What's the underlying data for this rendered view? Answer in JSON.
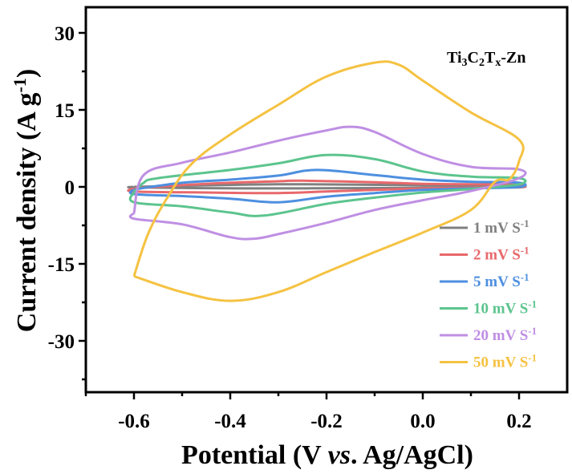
{
  "chart_data": {
    "type": "line",
    "title": "",
    "annotation": {
      "base": "Ti",
      "parts": [
        [
          "Ti",
          ""
        ],
        [
          "3",
          "sub"
        ],
        [
          "C",
          ""
        ],
        [
          "2",
          "sub"
        ],
        [
          "T",
          ""
        ],
        [
          "x",
          "sub"
        ],
        [
          "-Zn",
          ""
        ]
      ],
      "text": "Ti3C2Tx-Zn"
    },
    "xlabel": {
      "pre": "Potential (V ",
      "italic": "vs",
      "post": ". Ag/AgCl)"
    },
    "ylabel": {
      "main": "Current density (A g",
      "sup": "-1",
      "close": ")"
    },
    "xlim": [
      -0.7,
      0.3
    ],
    "ylim": [
      -40,
      35
    ],
    "xticks": [
      -0.6,
      -0.4,
      -0.2,
      0.0,
      0.2
    ],
    "xtick_labels": [
      "-0.6",
      "-0.4",
      "-0.2",
      "0.0",
      "0.2"
    ],
    "yticks": [
      30,
      15,
      0,
      -15,
      -30
    ],
    "ytick_labels": [
      "30",
      "15",
      "0",
      "-15",
      "-30"
    ],
    "grid": false,
    "legend_position": "bottom-right",
    "series": [
      {
        "name": "1 mV S-1",
        "label": "1 mV S",
        "sup": "-1",
        "color": "#808080",
        "x": [
          -0.6,
          -0.45,
          -0.3,
          -0.15,
          0.0,
          0.1,
          0.2,
          0.2,
          0.1,
          0.0,
          -0.15,
          -0.3,
          -0.45,
          -0.6,
          -0.6
        ],
        "y": [
          0.0,
          0.3,
          0.5,
          0.45,
          0.3,
          0.25,
          0.2,
          -0.1,
          -0.15,
          -0.2,
          -0.25,
          -0.3,
          -0.25,
          -0.1,
          0.0
        ]
      },
      {
        "name": "2 mV S-1",
        "label": "2 mV S",
        "sup": "-1",
        "color": "#e8686b",
        "x": [
          -0.6,
          -0.45,
          -0.3,
          -0.25,
          -0.1,
          0.0,
          0.1,
          0.2,
          0.2,
          0.1,
          0.0,
          -0.1,
          -0.2,
          -0.3,
          -0.45,
          -0.6,
          -0.6
        ],
        "y": [
          -0.3,
          0.6,
          1.1,
          1.2,
          0.9,
          0.6,
          0.5,
          0.4,
          0.0,
          -0.15,
          -0.3,
          -0.6,
          -0.9,
          -1.2,
          -1.1,
          -0.9,
          -0.3
        ]
      },
      {
        "name": "5 mV S-1",
        "label": "5 mV S",
        "sup": "-1",
        "color": "#4d8fe0",
        "x": [
          -0.6,
          -0.5,
          -0.4,
          -0.3,
          -0.22,
          -0.1,
          0.0,
          0.1,
          0.2,
          0.2,
          0.1,
          0.0,
          -0.1,
          -0.2,
          -0.3,
          -0.4,
          -0.5,
          -0.6,
          -0.6
        ],
        "y": [
          -0.5,
          0.8,
          1.4,
          2.2,
          3.3,
          2.3,
          1.4,
          1.0,
          0.8,
          0.0,
          -0.3,
          -0.6,
          -1.2,
          -1.9,
          -3.0,
          -2.3,
          -1.8,
          -1.4,
          -0.5
        ]
      },
      {
        "name": "10 mV S-1",
        "label": "10 mV S",
        "sup": "-1",
        "color": "#5cc48e",
        "x": [
          -0.6,
          -0.58,
          -0.55,
          -0.4,
          -0.3,
          -0.2,
          -0.1,
          0.0,
          0.1,
          0.2,
          0.2,
          0.1,
          0.0,
          -0.1,
          -0.2,
          -0.33,
          -0.4,
          -0.5,
          -0.6,
          -0.6
        ],
        "y": [
          -1.0,
          0.8,
          1.7,
          3.3,
          4.6,
          6.2,
          5.4,
          3.0,
          2.0,
          1.7,
          0.5,
          -0.4,
          -1.1,
          -2.1,
          -3.3,
          -5.6,
          -5.0,
          -3.8,
          -3.0,
          -1.0
        ]
      },
      {
        "name": "20 mV S-1",
        "label": "20 mV S",
        "sup": "-1",
        "color": "#bf8fe3",
        "x": [
          -0.6,
          -0.58,
          -0.5,
          -0.4,
          -0.3,
          -0.2,
          -0.15,
          -0.1,
          0.0,
          0.1,
          0.2,
          0.2,
          0.1,
          0.0,
          -0.1,
          -0.2,
          -0.3,
          -0.35,
          -0.4,
          -0.5,
          -0.6,
          -0.6
        ],
        "y": [
          -5.1,
          2.3,
          4.7,
          6.7,
          9.0,
          11.0,
          11.7,
          10.7,
          6.4,
          3.9,
          3.4,
          1.7,
          -0.8,
          -2.6,
          -4.5,
          -7.0,
          -9.2,
          -10.1,
          -9.8,
          -7.3,
          -6.2,
          -5.1
        ]
      },
      {
        "name": "50 mV S-1",
        "label": "50 mV S",
        "sup": "-1",
        "color": "#f5c242",
        "x": [
          -0.6,
          -0.57,
          -0.53,
          -0.48,
          -0.4,
          -0.3,
          -0.2,
          -0.1,
          -0.05,
          0.0,
          0.1,
          0.2,
          0.2,
          0.18,
          0.15,
          0.1,
          0.0,
          -0.1,
          -0.2,
          -0.3,
          -0.4,
          -0.5,
          -0.6
        ],
        "y": [
          -17.4,
          -9.0,
          -2.0,
          4.5,
          10.2,
          16.0,
          21.5,
          24.2,
          23.8,
          20.7,
          14.5,
          9.2,
          5.0,
          1.5,
          1.0,
          -4.5,
          -8.9,
          -12.7,
          -16.6,
          -20.5,
          -22.2,
          -20.5,
          -17.4
        ]
      }
    ]
  }
}
